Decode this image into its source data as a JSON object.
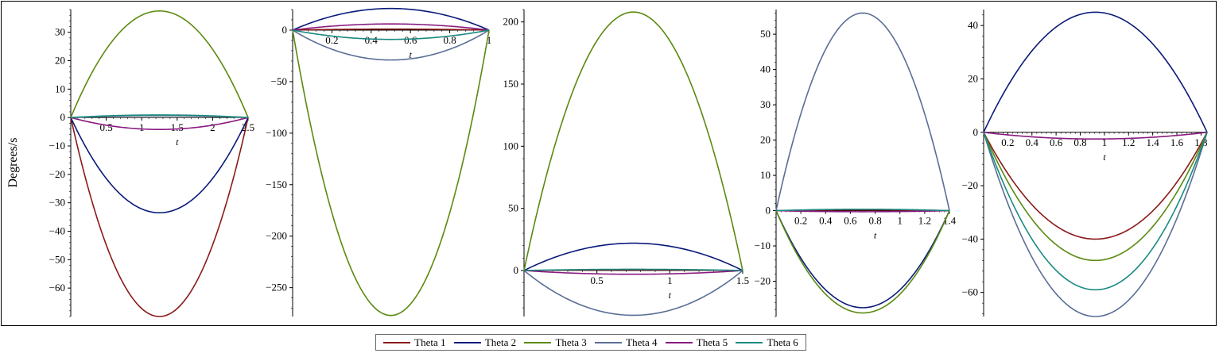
{
  "chart_data": [
    {
      "type": "line",
      "ylabel": "Degrees/s",
      "xlabel": "t",
      "xlim": [
        0,
        2.5
      ],
      "ylim": [
        -70,
        38
      ],
      "xticks": [
        0.5,
        1,
        1.5,
        2,
        2.5
      ],
      "yticks": [
        30,
        20,
        10,
        0,
        -10,
        -20,
        -30,
        -40,
        -50,
        -60
      ],
      "xtick_labels": [
        "0.5",
        "1",
        "1.5",
        "2",
        "2.5"
      ],
      "ytick_labels": [
        "30",
        "20",
        "10",
        "0",
        "−10",
        "−20",
        "−30",
        "−40",
        "−50",
        "−60"
      ],
      "series": [
        {
          "name": "Theta 1",
          "peak": -70
        },
        {
          "name": "Theta 2",
          "peak": -33.5
        },
        {
          "name": "Theta 3",
          "peak": 37.5
        },
        {
          "name": "Theta 4",
          "peak": 0.7
        },
        {
          "name": "Theta 5",
          "peak": -4.2
        },
        {
          "name": "Theta 6",
          "peak": 0.9
        }
      ]
    },
    {
      "type": "line",
      "xlabel": "t",
      "xlim": [
        0,
        1
      ],
      "ylim": [
        -278,
        20
      ],
      "xticks": [
        0.2,
        0.4,
        0.6,
        0.8,
        1
      ],
      "yticks": [
        0,
        -50,
        -100,
        -150,
        -200,
        -250
      ],
      "xtick_labels": [
        "0.2",
        "0.4",
        "0.6",
        "0.8",
        "1"
      ],
      "ytick_labels": [
        "0",
        "−50",
        "−100",
        "−150",
        "−200",
        "−250"
      ],
      "series": [
        {
          "name": "Theta 1",
          "peak": 1
        },
        {
          "name": "Theta 2",
          "peak": 21
        },
        {
          "name": "Theta 3",
          "peak": -277
        },
        {
          "name": "Theta 4",
          "peak": -29
        },
        {
          "name": "Theta 5",
          "peak": 6
        },
        {
          "name": "Theta 6",
          "peak": -9
        }
      ]
    },
    {
      "type": "line",
      "xlabel": "t",
      "xlim": [
        0,
        1.5
      ],
      "ylim": [
        -37,
        210
      ],
      "xticks": [
        0.5,
        1,
        1.5
      ],
      "yticks": [
        200,
        150,
        100,
        50,
        0
      ],
      "xtick_labels": [
        "0.5",
        "1",
        "1.5"
      ],
      "ytick_labels": [
        "200",
        "150",
        "100",
        "50",
        "0"
      ],
      "series": [
        {
          "name": "Theta 1",
          "peak": 0.5
        },
        {
          "name": "Theta 2",
          "peak": 22
        },
        {
          "name": "Theta 3",
          "peak": 208
        },
        {
          "name": "Theta 4",
          "peak": -36
        },
        {
          "name": "Theta 5",
          "peak": -3
        },
        {
          "name": "Theta 6",
          "peak": 1
        }
      ]
    },
    {
      "type": "line",
      "xlabel": "t",
      "xlim": [
        0,
        1.4
      ],
      "ylim": [
        -30,
        57
      ],
      "xticks": [
        0.2,
        0.4,
        0.6,
        0.8,
        1,
        1.2,
        1.4
      ],
      "yticks": [
        50,
        40,
        30,
        20,
        10,
        0,
        -10,
        -20
      ],
      "xtick_labels": [
        "0.2",
        "0.4",
        "0.6",
        "0.8",
        "1",
        "1.2",
        "1.4"
      ],
      "ytick_labels": [
        "50",
        "40",
        "30",
        "20",
        "10",
        "0",
        "−10",
        "−20"
      ],
      "series": [
        {
          "name": "Theta 1",
          "peak": 0.2
        },
        {
          "name": "Theta 2",
          "peak": -27.5
        },
        {
          "name": "Theta 3",
          "peak": -29
        },
        {
          "name": "Theta 4",
          "peak": 56
        },
        {
          "name": "Theta 5",
          "peak": -0.3
        },
        {
          "name": "Theta 6",
          "peak": 0.4
        }
      ]
    },
    {
      "type": "line",
      "xlabel": "t",
      "xlim": [
        0,
        1.85
      ],
      "ylim": [
        -69,
        46
      ],
      "xticks": [
        0.2,
        0.4,
        0.6,
        0.8,
        1,
        1.2,
        1.4,
        1.6,
        1.8
      ],
      "yticks": [
        40,
        20,
        0,
        -20,
        -40,
        -60
      ],
      "xtick_labels": [
        "0.2",
        "0.4",
        "0.6",
        "0.8",
        "1",
        "1.2",
        "1.4",
        "1.6",
        "1.8"
      ],
      "ytick_labels": [
        "40",
        "20",
        "0",
        "−20",
        "−40",
        "−60"
      ],
      "series": [
        {
          "name": "Theta 1",
          "peak": -40
        },
        {
          "name": "Theta 2",
          "peak": 45
        },
        {
          "name": "Theta 3",
          "peak": -48
        },
        {
          "name": "Theta 4",
          "peak": -69
        },
        {
          "name": "Theta 5",
          "peak": -2.5
        },
        {
          "name": "Theta 6",
          "peak": -59
        }
      ]
    }
  ],
  "legend": [
    {
      "name": "Theta 1",
      "color": "#8b1a1a"
    },
    {
      "name": "Theta 2",
      "color": "#0a1a7a"
    },
    {
      "name": "Theta 3",
      "color": "#5a8a10"
    },
    {
      "name": "Theta 4",
      "color": "#5a6e96"
    },
    {
      "name": "Theta 5",
      "color": "#8a1a80"
    },
    {
      "name": "Theta 6",
      "color": "#1a8a80"
    }
  ]
}
